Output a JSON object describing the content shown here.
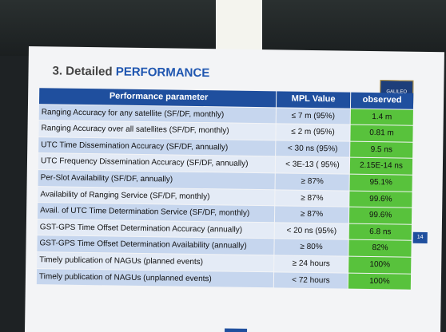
{
  "header": {
    "title_prefix": "3. Detailed ",
    "title_highlight": "PERFORMANCE"
  },
  "logo": {
    "text": "GALILEO"
  },
  "table": {
    "columns": [
      "Performance parameter",
      "MPL Value",
      "observed"
    ],
    "rows": [
      [
        "Ranging Accuracy for any satellite (SF/DF, monthly)",
        "≤ 7 m (95%)",
        "1.4 m"
      ],
      [
        "Ranging Accuracy over all satellites (SF/DF, monthly)",
        "≤ 2 m (95%)",
        "0.81 m"
      ],
      [
        "UTC Time Dissemination Accuracy (SF/DF, annually)",
        "< 30 ns (95%)",
        "9.5 ns"
      ],
      [
        "UTC Frequency Dissemination Accuracy (SF/DF, annually)",
        "< 3E-13 ( 95%)",
        "2.15E-14 ns"
      ],
      [
        "Per-Slot Availability (SF/DF, annually)",
        "≥ 87%",
        "95.1%"
      ],
      [
        "Availability of Ranging Service (SF/DF, monthly)",
        "≥ 87%",
        "99.6%"
      ],
      [
        "Avail. of UTC Time Determination Service (SF/DF, monthly)",
        "≥ 87%",
        "99.6%"
      ],
      [
        "GST-GPS Time Offset Determination Accuracy (annually)",
        "< 20 ns (95%)",
        "6.8 ns"
      ],
      [
        "GST-GPS Time Offset Determination Availability (annually)",
        "≥ 80%",
        "82%"
      ],
      [
        "Timely publication of NAGUs (planned events)",
        "≥ 24 hours",
        "100%"
      ],
      [
        "Timely publication of NAGUs (unplanned events)",
        "< 72 hours",
        "100%"
      ]
    ]
  },
  "page_number": "14"
}
